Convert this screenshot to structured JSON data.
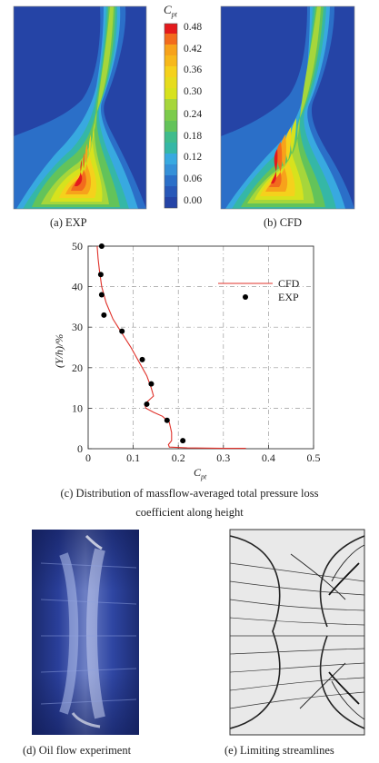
{
  "contour": {
    "colorbar_title": "C",
    "colorbar_title_sub": "pt",
    "levels": [
      "0.48",
      "0.42",
      "0.36",
      "0.30",
      "0.24",
      "0.18",
      "0.12",
      "0.06",
      "0.00"
    ],
    "colors": [
      "#e41a1c",
      "#f26b1d",
      "#f7a21b",
      "#f5d11c",
      "#d7e21d",
      "#a6d63b",
      "#63c35a",
      "#35b7a6",
      "#38a9e0",
      "#2b6fc8",
      "#2544a6"
    ],
    "panel_a_caption": "(a) EXP",
    "panel_b_caption": "(b) CFD"
  },
  "chart_data": {
    "type": "scatter",
    "xlabel": "C",
    "xlabel_sub": "pt",
    "ylabel": "(Y/h)/%",
    "xlim": [
      0,
      0.5
    ],
    "ylim": [
      0,
      50
    ],
    "xticks": [
      "0",
      "0.1",
      "0.2",
      "0.3",
      "0.4",
      "0.5"
    ],
    "yticks": [
      "0",
      "10",
      "20",
      "30",
      "40",
      "50"
    ],
    "grid": true,
    "legend_position": "top-right",
    "series": [
      {
        "name": "CFD",
        "kind": "line",
        "color": "#e0312a",
        "x": [
          0.02,
          0.022,
          0.025,
          0.03,
          0.04,
          0.055,
          0.075,
          0.095,
          0.115,
          0.13,
          0.14,
          0.145,
          0.135,
          0.125,
          0.128,
          0.145,
          0.165,
          0.18,
          0.185,
          0.185,
          0.178,
          0.18,
          0.22,
          0.3,
          0.35
        ],
        "y": [
          50,
          47,
          44,
          40,
          36,
          32,
          28.5,
          25,
          21,
          18,
          15,
          13,
          12,
          11,
          10,
          9,
          8,
          6.5,
          4,
          2,
          1,
          0.4,
          0.2,
          0.1,
          0.1
        ]
      },
      {
        "name": "EXP",
        "kind": "scatter",
        "color": "#000000",
        "x": [
          0.03,
          0.028,
          0.03,
          0.035,
          0.075,
          0.12,
          0.14,
          0.13,
          0.175,
          0.21
        ],
        "y": [
          50,
          43,
          38,
          33,
          29,
          22,
          16,
          11,
          7,
          2
        ]
      }
    ],
    "caption_line1": "(c) Distribution of massflow-averaged total pressure loss",
    "caption_line2": "coefficient along height"
  },
  "bottom": {
    "panel_d_caption": "(d) Oil flow experiment",
    "panel_e_caption": "(e) Limiting streamlines"
  }
}
